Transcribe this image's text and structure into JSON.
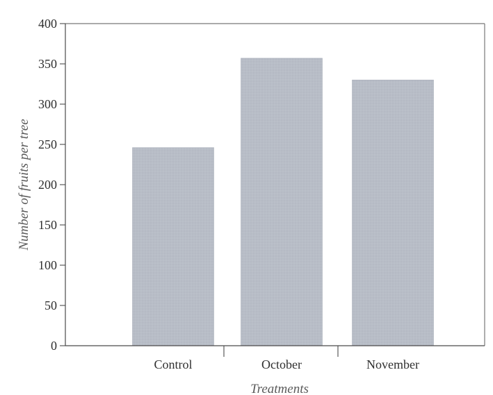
{
  "chart_data": {
    "type": "bar",
    "categories": [
      "Control",
      "October",
      "November"
    ],
    "values": [
      246,
      357,
      330
    ],
    "title": "",
    "xlabel": "Treatments",
    "ylabel": "Number of fruits per tree",
    "ylim": [
      0,
      400
    ],
    "yticks": [
      0,
      50,
      100,
      150,
      200,
      250,
      300,
      350,
      400
    ],
    "grid": false,
    "legend": "none",
    "colors": {
      "bar": "#b7bcc6",
      "axis": "#4a4a4a",
      "frame": "#777777",
      "text": "#2f2f2f",
      "axis_title": "#5a5a5a"
    }
  }
}
